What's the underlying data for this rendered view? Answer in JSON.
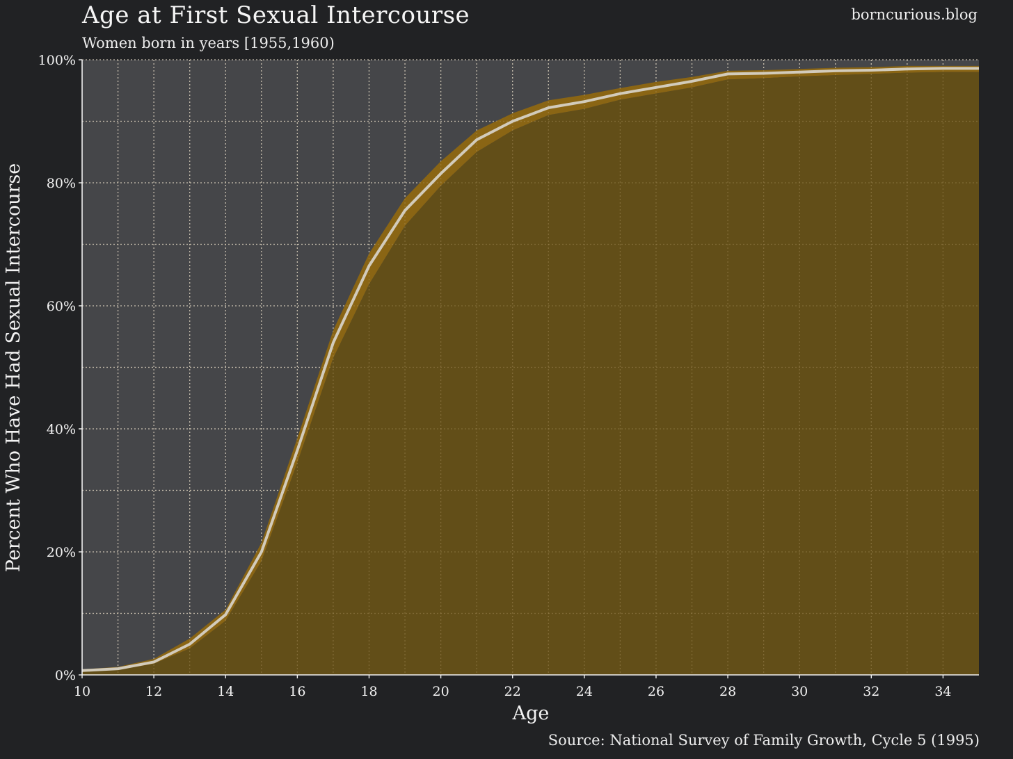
{
  "header": {
    "title": "Age at First Sexual Intercourse",
    "subtitle": "Women born in years [1955,1960)",
    "watermark": "borncurious.blog"
  },
  "footer": {
    "source": "Source: National Survey of Family Growth, Cycle 5 (1995)"
  },
  "chart_data": {
    "type": "area",
    "xlabel": "Age",
    "ylabel": "Percent Who Have Had Sexual Intercourse",
    "xlim": [
      10,
      35
    ],
    "ylim": [
      0,
      100
    ],
    "x_ticks": [
      10,
      12,
      14,
      16,
      18,
      20,
      22,
      24,
      26,
      28,
      30,
      32,
      34
    ],
    "x_minor_grid": [
      11,
      13,
      15,
      17,
      19,
      21,
      23,
      25,
      27,
      29,
      31,
      33
    ],
    "y_ticks": [
      0,
      20,
      40,
      60,
      80,
      100
    ],
    "y_tick_labels": [
      "0%",
      "20%",
      "40%",
      "60%",
      "80%",
      "100%"
    ],
    "y_minor_grid": [
      10,
      30,
      50,
      70,
      90
    ],
    "grid": true,
    "x": [
      10,
      11,
      12,
      13,
      14,
      15,
      16,
      17,
      18,
      19,
      20,
      21,
      22,
      23,
      24,
      25,
      26,
      27,
      28,
      29,
      30,
      31,
      32,
      33,
      34,
      35
    ],
    "series": [
      {
        "values": [
          0.7,
          1.0,
          2.1,
          5.0,
          9.8,
          20.0,
          36.5,
          54.0,
          66.5,
          75.5,
          81.5,
          87.0,
          90.0,
          92.2,
          93.2,
          94.5,
          95.5,
          96.5,
          97.7,
          97.8,
          98.0,
          98.2,
          98.3,
          98.5,
          98.6,
          98.6
        ],
        "lower": [
          0.5,
          0.8,
          1.8,
          4.3,
          8.8,
          18.5,
          34.5,
          51.5,
          63.5,
          73.0,
          79.5,
          85.0,
          88.5,
          91.0,
          92.0,
          93.5,
          94.5,
          95.5,
          96.8,
          97.0,
          97.3,
          97.5,
          97.7,
          97.9,
          98.0,
          98.0
        ],
        "upper": [
          0.9,
          1.3,
          2.6,
          5.9,
          10.6,
          21.5,
          38.5,
          56.0,
          68.5,
          77.5,
          83.5,
          88.5,
          91.3,
          93.4,
          94.3,
          95.4,
          96.4,
          97.2,
          98.2,
          98.3,
          98.5,
          98.7,
          98.8,
          99.0,
          99.0,
          99.0
        ]
      }
    ],
    "colors": {
      "plot_background": "#454649",
      "fill": "#624e18",
      "band": "#8a6514",
      "line": "#d2cbbb",
      "grid": "#d8d8d8",
      "axis": "#f2f2f2"
    }
  }
}
